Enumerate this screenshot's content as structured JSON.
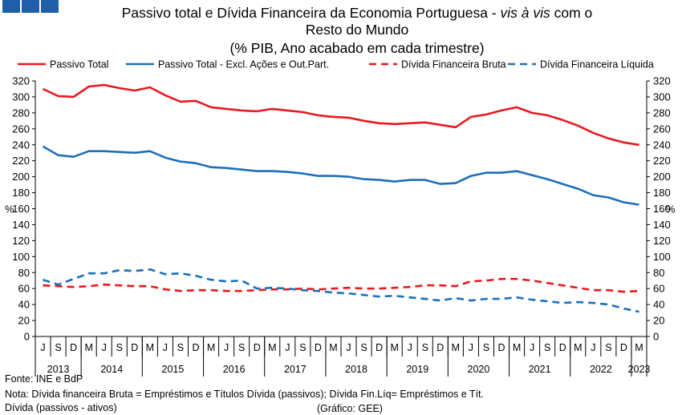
{
  "header": {
    "title_line1_a": "Passivo total e Dívida Financeira da Economia Portuguesa - ",
    "title_line1_b": "vis à vis",
    "title_line1_c": " com o",
    "title_line2": "Resto do Mundo",
    "title_line3": "(% PIB, Ano acabado em cada trimestre)"
  },
  "footer": {
    "source": "Fonte: INE e BdP",
    "note_line1": "Nota: Dívida financeira Bruta = Empréstimos e Títulos Dívida (passivos); Dívida Fin.Líq= Empréstimos e Tít.",
    "note_line2": "Dívida (passivos - ativos)",
    "credit": "(Gráfico: GEE)"
  },
  "colors": {
    "red": "#e8191f",
    "blue": "#1c6fba",
    "logo": "#1f5fa8"
  },
  "chart_data": {
    "type": "line",
    "ylabel_left": "%",
    "ylabel_right": "%",
    "ylim": [
      0,
      320
    ],
    "yticks": [
      0,
      20,
      40,
      60,
      80,
      100,
      120,
      140,
      160,
      180,
      200,
      220,
      240,
      260,
      280,
      300,
      320
    ],
    "quarter_labels": [
      "J",
      "S",
      "D",
      "M",
      "J",
      "S",
      "D",
      "M",
      "J",
      "S",
      "D",
      "M",
      "J",
      "S",
      "D",
      "M",
      "J",
      "S",
      "D",
      "M",
      "J",
      "S",
      "D",
      "M",
      "J",
      "S",
      "D",
      "M",
      "J",
      "S",
      "D",
      "M",
      "J",
      "S",
      "D",
      "M",
      "J",
      "S",
      "D",
      "M"
    ],
    "years": [
      {
        "label": "2013",
        "start": 0,
        "count": 3
      },
      {
        "label": "2014",
        "start": 3,
        "count": 4
      },
      {
        "label": "2015",
        "start": 7,
        "count": 4
      },
      {
        "label": "2016",
        "start": 11,
        "count": 4
      },
      {
        "label": "2017",
        "start": 15,
        "count": 4
      },
      {
        "label": "2018",
        "start": 19,
        "count": 4
      },
      {
        "label": "2019",
        "start": 23,
        "count": 4
      },
      {
        "label": "2020",
        "start": 27,
        "count": 4
      },
      {
        "label": "2021",
        "start": 31,
        "count": 4
      },
      {
        "label": "2022",
        "start": 35,
        "count": 4
      },
      {
        "label": "2023",
        "start": 39,
        "count": 1
      }
    ],
    "series": [
      {
        "name": "Passivo Total",
        "color": "#e8191f",
        "dashed": false,
        "values": [
          310,
          301,
          300,
          313,
          315,
          311,
          308,
          312,
          302,
          294,
          295,
          287,
          285,
          283,
          282,
          285,
          283,
          281,
          277,
          275,
          274,
          270,
          267,
          266,
          267,
          268,
          265,
          262,
          275,
          278,
          283,
          287,
          280,
          277,
          271,
          264,
          255,
          248,
          243,
          240
        ]
      },
      {
        "name": "Passivo Total - Excl. Ações e Out.Part.",
        "color": "#1c6fba",
        "dashed": false,
        "values": [
          238,
          227,
          225,
          232,
          232,
          231,
          230,
          232,
          224,
          219,
          217,
          212,
          211,
          209,
          207,
          207,
          206,
          204,
          201,
          201,
          200,
          197,
          196,
          194,
          196,
          196,
          191,
          192,
          201,
          205,
          205,
          207,
          202,
          197,
          191,
          185,
          177,
          174,
          168,
          165
        ]
      },
      {
        "name": "Dívida Financeira Bruta",
        "color": "#e8191f",
        "dashed": true,
        "values": [
          64,
          63,
          62,
          63,
          65,
          64,
          63,
          63,
          59,
          57,
          58,
          58,
          57,
          57,
          58,
          59,
          59,
          60,
          59,
          60,
          61,
          60,
          60,
          61,
          62,
          64,
          64,
          63,
          69,
          70,
          72,
          72,
          70,
          67,
          64,
          61,
          58,
          58,
          56,
          57
        ]
      },
      {
        "name": "Dívida Financeira Líquida",
        "color": "#1c6fba",
        "dashed": true,
        "values": [
          71,
          65,
          72,
          79,
          79,
          83,
          82,
          84,
          78,
          79,
          76,
          71,
          69,
          70,
          60,
          61,
          60,
          58,
          57,
          55,
          54,
          52,
          50,
          51,
          49,
          47,
          45,
          48,
          45,
          47,
          47,
          49,
          46,
          44,
          42,
          43,
          42,
          40,
          35,
          31
        ]
      }
    ]
  }
}
